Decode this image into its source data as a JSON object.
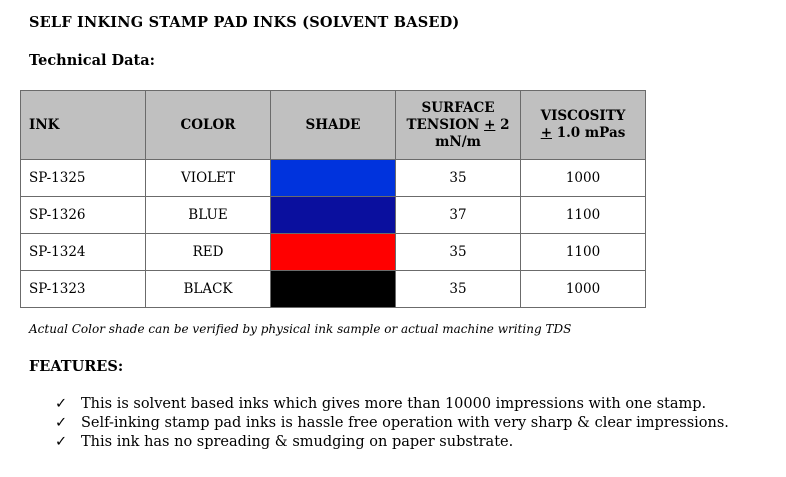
{
  "title": "SELF INKING STAMP PAD INKS (SOLVENT BASED)",
  "subtitle": "Technical Data:",
  "table": {
    "headers": {
      "ink": "INK",
      "color": "COLOR",
      "shade": "SHADE",
      "surface_line1": "SURFACE",
      "surface_line2_a": "TENSION ",
      "surface_pm": "+",
      "surface_line2_b": " 2",
      "surface_line3": "mN/m",
      "viscosity_line1": "VISCOSITY",
      "viscosity_pm": "+",
      "viscosity_line2": " 1.0 mPas"
    },
    "rows": [
      {
        "ink": "SP-1325",
        "color": "VIOLET",
        "shade": "#0033dd",
        "surface": "35",
        "viscosity": "1000"
      },
      {
        "ink": "SP-1326",
        "color": "BLUE",
        "shade": "#0a0f9e",
        "surface": "37",
        "viscosity": "1100"
      },
      {
        "ink": "SP-1324",
        "color": "RED",
        "shade": "#ff0000",
        "surface": "35",
        "viscosity": "1100"
      },
      {
        "ink": "SP-1323",
        "color": "BLACK",
        "shade": "#000000",
        "surface": "35",
        "viscosity": "1000"
      }
    ]
  },
  "note": "Actual Color shade can be verified by physical ink sample or actual machine writing TDS",
  "features": {
    "heading": "FEATURES:",
    "check_symbol": "✓",
    "items": [
      "This is solvent based inks which gives more than 10000 impressions with one stamp.",
      "Self-inking stamp pad inks is hassle free operation with very sharp & clear impressions.",
      "This ink has no spreading & smudging on paper substrate."
    ]
  }
}
